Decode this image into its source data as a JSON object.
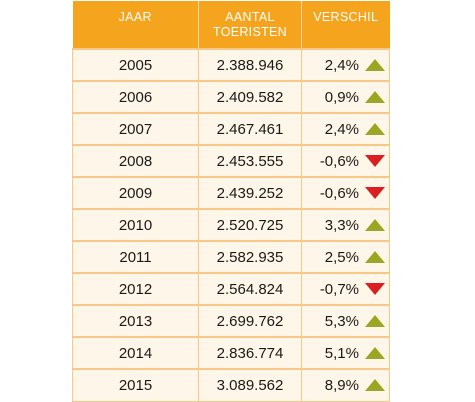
{
  "header": {
    "year": "JAAR",
    "tourists_line1": "AANTAL",
    "tourists_line2": "TOERISTEN",
    "difference": "VERSCHIL"
  },
  "colors": {
    "header_bg": "#f4a51d",
    "up": "#9aa624",
    "down": "#d91f1f"
  },
  "chart_data": {
    "type": "table",
    "columns": [
      "JAAR",
      "AANTAL TOERISTEN",
      "VERSCHIL"
    ],
    "rows": [
      {
        "year": "2005",
        "tourists": "2.388.946",
        "difference": "2,4%",
        "trend": "up"
      },
      {
        "year": "2006",
        "tourists": "2.409.582",
        "difference": "0,9%",
        "trend": "up"
      },
      {
        "year": "2007",
        "tourists": "2.467.461",
        "difference": "2,4%",
        "trend": "up"
      },
      {
        "year": "2008",
        "tourists": "2.453.555",
        "difference": "-0,6%",
        "trend": "down"
      },
      {
        "year": "2009",
        "tourists": "2.439.252",
        "difference": "-0,6%",
        "trend": "down"
      },
      {
        "year": "2010",
        "tourists": "2.520.725",
        "difference": "3,3%",
        "trend": "up"
      },
      {
        "year": "2011",
        "tourists": "2.582.935",
        "difference": "2,5%",
        "trend": "up"
      },
      {
        "year": "2012",
        "tourists": "2.564.824",
        "difference": "-0,7%",
        "trend": "down"
      },
      {
        "year": "2013",
        "tourists": "2.699.762",
        "difference": "5,3%",
        "trend": "up"
      },
      {
        "year": "2014",
        "tourists": "2.836.774",
        "difference": "5,1%",
        "trend": "up"
      },
      {
        "year": "2015",
        "tourists": "3.089.562",
        "difference": "8,9%",
        "trend": "up"
      }
    ]
  }
}
